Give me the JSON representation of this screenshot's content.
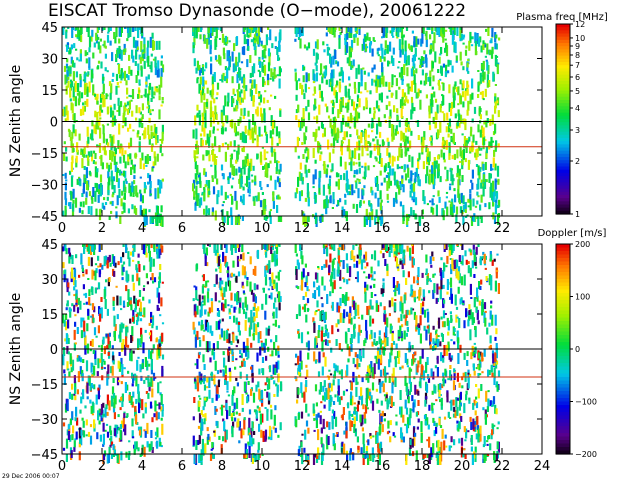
{
  "figure": {
    "title": "EISCAT Tromso Dynasonde (O−mode),  20061222",
    "timestamp": "29 Dec 2006 00:07"
  },
  "chart_data": [
    {
      "type": "scatter",
      "title": "EISCAT Tromso Dynasonde (O−mode),  20061222",
      "ylabel": "NS Zenith angle",
      "xlabel": "",
      "xlim": [
        0,
        22
      ],
      "ylim": [
        -45,
        45
      ],
      "xticks": [
        "0",
        "2",
        "4",
        "6",
        "8",
        "10",
        "12",
        "14",
        "16",
        "18",
        "20",
        "22"
      ],
      "yticks": [
        "45",
        "30",
        "15",
        "0",
        "−15",
        "−30",
        "−45"
      ],
      "colorbar": {
        "label": "Plasma freq [MHz]",
        "scale": "log",
        "range": [
          1,
          12
        ],
        "ticks": [
          "12",
          "10",
          "9",
          "8",
          "7",
          "6",
          "5",
          "4",
          "3",
          "2",
          "1"
        ]
      },
      "reference_lines": [
        {
          "y": 0,
          "color": "#000000"
        },
        {
          "y": -12,
          "color": "#d03010"
        }
      ],
      "data_gaps": [
        [
          5.6,
          6.5
        ],
        [
          10.9,
          11.6
        ],
        [
          12.3,
          12.5
        ],
        [
          21.8,
          22
        ]
      ],
      "series": [
        {
          "x": [
            0.5,
            1.5,
            2.5,
            3.5,
            4.5,
            6.5,
            7.5,
            8.5,
            9.5,
            10.5,
            11.5,
            12.5,
            13.5,
            14.5,
            15.5,
            16.5,
            17.5,
            18.5,
            19.5,
            20.5,
            21.5
          ],
          "y": [
            5,
            3,
            2,
            6,
            -3,
            8,
            4,
            -6,
            10,
            -2,
            12,
            -8,
            6,
            4,
            -5,
            8,
            -2,
            6,
            3,
            -4,
            2
          ]
        }
      ]
    },
    {
      "type": "scatter",
      "title": "",
      "ylabel": "NS Zenith angle",
      "xlabel": "",
      "xlim": [
        0,
        24
      ],
      "ylim": [
        -45,
        45
      ],
      "xticks": [
        "0",
        "2",
        "4",
        "6",
        "8",
        "10",
        "12",
        "14",
        "16",
        "18",
        "20",
        "22",
        "24"
      ],
      "yticks": [
        "45",
        "30",
        "15",
        "0",
        "−15",
        "−30",
        "−45"
      ],
      "colorbar": {
        "label": "Doppler [m/s]",
        "scale": "linear",
        "range": [
          -200,
          200
        ],
        "ticks": [
          "200",
          "100",
          "0",
          "−100",
          "−200"
        ]
      },
      "reference_lines": [
        {
          "y": 0,
          "color": "#000000"
        },
        {
          "y": -12,
          "color": "#d03010"
        }
      ],
      "data_gaps": [
        [
          5.6,
          6.5
        ],
        [
          10.9,
          11.6
        ],
        [
          12.3,
          12.5
        ],
        [
          21.8,
          24
        ]
      ],
      "series": [
        {
          "x": [
            0.5,
            1.5,
            2.5,
            3.5,
            4.5,
            6.5,
            7.5,
            8.5,
            9.5,
            10.5,
            11.5,
            12.5,
            13.5,
            14.5,
            15.5,
            16.5,
            17.5,
            18.5,
            19.5,
            20.5,
            21.5
          ],
          "y": [
            0,
            10,
            -5,
            0,
            5,
            -10,
            0,
            5,
            -5,
            10,
            0,
            -10,
            5,
            0,
            -5,
            10,
            0,
            -5,
            5,
            0,
            -5
          ]
        }
      ]
    }
  ]
}
